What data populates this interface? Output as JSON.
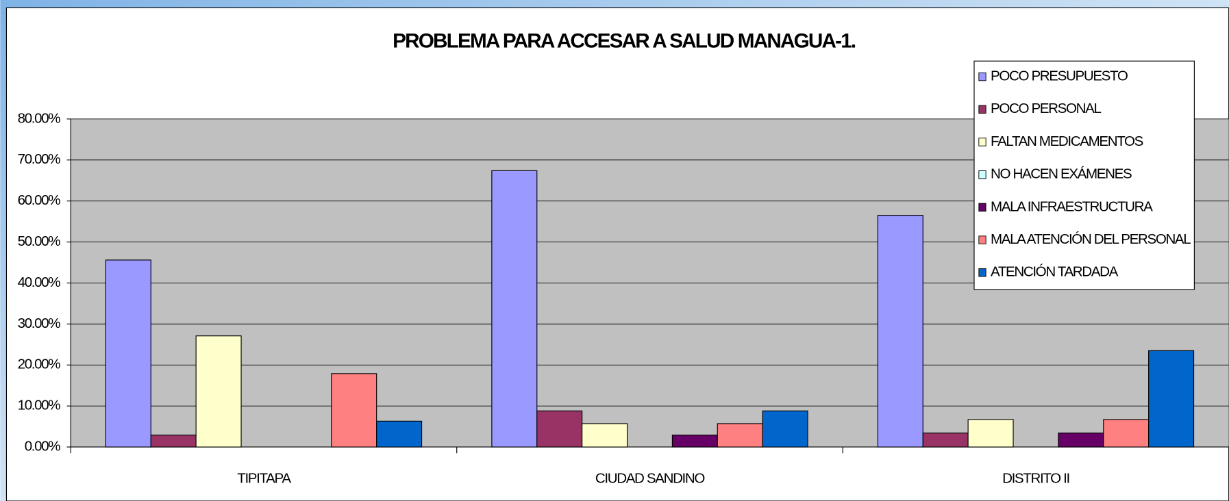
{
  "chart_data": {
    "type": "bar",
    "title": "PROBLEMA PARA ACCESAR A SALUD MANAGUA-1.",
    "categories": [
      "TIPITAPA",
      "CIUDAD SANDINO",
      "DISTRITO II"
    ],
    "series": [
      {
        "name": "POCO PRESUPUESTO",
        "color": "#9999ff",
        "values": [
          45.6,
          67.4,
          56.5
        ]
      },
      {
        "name": "POCO PERSONAL",
        "color": "#993366",
        "values": [
          2.9,
          8.8,
          3.4
        ]
      },
      {
        "name": "FALTAN MEDICAMENTOS",
        "color": "#ffffcc",
        "values": [
          27.1,
          5.7,
          6.7
        ]
      },
      {
        "name": "NO HACEN EXÁMENES",
        "color": "#ccffff",
        "values": [
          0,
          0,
          0
        ]
      },
      {
        "name": "MALA INFRAESTRUCTURA",
        "color": "#660066",
        "values": [
          0,
          2.9,
          3.4
        ]
      },
      {
        "name": "MALA ATENCIÓN DEL PERSONAL",
        "color": "#ff8080",
        "values": [
          17.9,
          5.7,
          6.7
        ]
      },
      {
        "name": "ATENCIÓN TARDADA",
        "color": "#0066cc",
        "values": [
          6.3,
          8.8,
          23.5
        ]
      }
    ],
    "ylim": [
      0,
      80
    ],
    "yticks": [
      {
        "value": 0,
        "label": "0.00%"
      },
      {
        "value": 10,
        "label": "10.00%"
      },
      {
        "value": 20,
        "label": "20.00%"
      },
      {
        "value": 30,
        "label": "30.00%"
      },
      {
        "value": 40,
        "label": "40.00%"
      },
      {
        "value": 50,
        "label": "50.00%"
      },
      {
        "value": 60,
        "label": "60.00%"
      },
      {
        "value": 70,
        "label": "70.00%"
      },
      {
        "value": 80,
        "label": "80.00%"
      }
    ],
    "grid": true,
    "legend": "upper right"
  }
}
